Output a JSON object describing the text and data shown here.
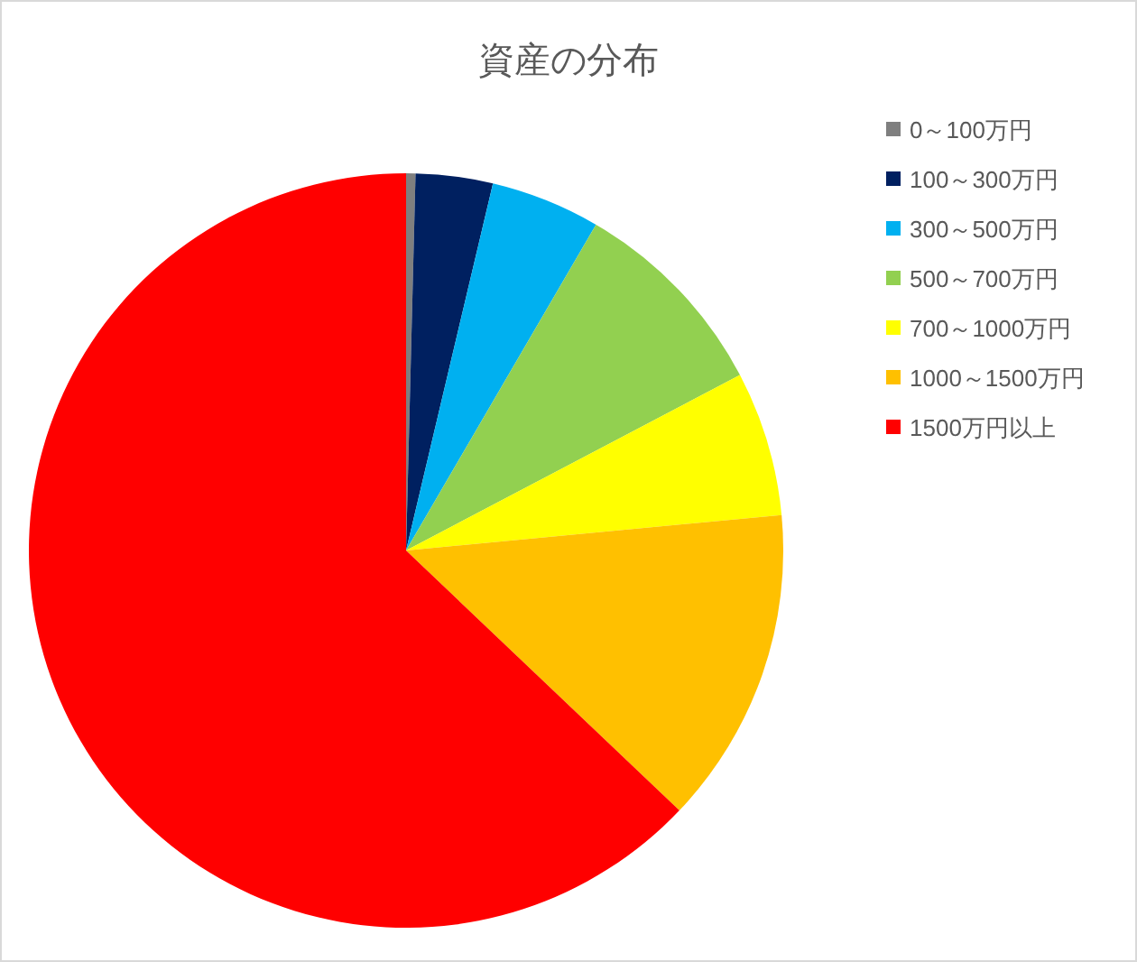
{
  "chart_data": {
    "type": "pie",
    "title": "資産の分布",
    "categories": [
      "0～100万円",
      "100～300万円",
      "300～500万円",
      "500～700万円",
      "700～1000万円",
      "1000～1500万円",
      "1500万円以上"
    ],
    "values": [
      0.4,
      3.3,
      4.7,
      8.9,
      6.2,
      13.6,
      62.9
    ],
    "colors": [
      "#7f7f7f",
      "#002060",
      "#00b0f0",
      "#92d050",
      "#ffff00",
      "#ffc000",
      "#ff0000"
    ],
    "legend": "right"
  }
}
